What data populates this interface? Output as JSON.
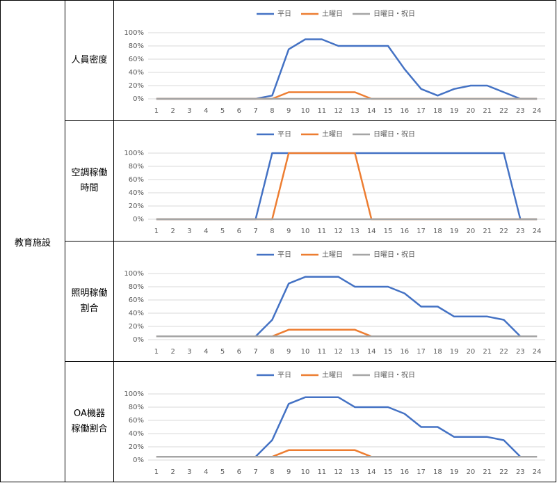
{
  "table": {
    "group": "教育施設",
    "rows": [
      [
        "人員密度"
      ],
      [
        "空調稼働",
        "時間"
      ],
      [
        "照明稼働",
        "割合"
      ],
      [
        "OA機器",
        "稼働割合"
      ]
    ]
  },
  "chart_data": [
    {
      "type": "line",
      "categories": [
        "1",
        "2",
        "3",
        "4",
        "5",
        "6",
        "7",
        "8",
        "9",
        "10",
        "11",
        "12",
        "13",
        "14",
        "15",
        "16",
        "17",
        "18",
        "19",
        "20",
        "21",
        "22",
        "23",
        "24"
      ],
      "ylim": [
        0,
        100
      ],
      "yticks": [
        {
          "value": 0,
          "label": "0%"
        },
        {
          "value": 20,
          "label": "20%"
        },
        {
          "value": 40,
          "label": "40%"
        },
        {
          "value": 60,
          "label": "60%"
        },
        {
          "value": 80,
          "label": "80%"
        },
        {
          "value": 100,
          "label": "100%"
        }
      ],
      "grid": true,
      "series": [
        {
          "name": "平日",
          "color": "#4472c4",
          "values": [
            0,
            0,
            0,
            0,
            0,
            0,
            0,
            5,
            75,
            90,
            90,
            80,
            80,
            80,
            80,
            45,
            15,
            5,
            15,
            20,
            20,
            10,
            0,
            0
          ]
        },
        {
          "name": "土曜日",
          "color": "#ed7d31",
          "values": [
            0,
            0,
            0,
            0,
            0,
            0,
            0,
            0,
            10,
            10,
            10,
            10,
            10,
            0,
            0,
            0,
            0,
            0,
            0,
            0,
            0,
            0,
            0,
            0
          ]
        },
        {
          "name": "日曜日・祝日",
          "color": "#a5a5a5",
          "values": [
            0,
            0,
            0,
            0,
            0,
            0,
            0,
            0,
            0,
            0,
            0,
            0,
            0,
            0,
            0,
            0,
            0,
            0,
            0,
            0,
            0,
            0,
            0,
            0
          ]
        }
      ]
    },
    {
      "type": "line",
      "categories": [
        "1",
        "2",
        "3",
        "4",
        "5",
        "6",
        "7",
        "8",
        "9",
        "10",
        "11",
        "12",
        "13",
        "14",
        "15",
        "16",
        "17",
        "18",
        "19",
        "20",
        "21",
        "22",
        "23",
        "24"
      ],
      "ylim": [
        0,
        100
      ],
      "yticks": [
        {
          "value": 0,
          "label": "0%"
        },
        {
          "value": 20,
          "label": "20%"
        },
        {
          "value": 40,
          "label": "40%"
        },
        {
          "value": 60,
          "label": "60%"
        },
        {
          "value": 80,
          "label": "80%"
        },
        {
          "value": 100,
          "label": "100%"
        }
      ],
      "grid": true,
      "series": [
        {
          "name": "平日",
          "color": "#4472c4",
          "values": [
            0,
            0,
            0,
            0,
            0,
            0,
            0,
            100,
            100,
            100,
            100,
            100,
            100,
            100,
            100,
            100,
            100,
            100,
            100,
            100,
            100,
            100,
            0,
            0
          ]
        },
        {
          "name": "土曜日",
          "color": "#ed7d31",
          "values": [
            0,
            0,
            0,
            0,
            0,
            0,
            0,
            0,
            100,
            100,
            100,
            100,
            100,
            0,
            0,
            0,
            0,
            0,
            0,
            0,
            0,
            0,
            0,
            0
          ]
        },
        {
          "name": "日曜日・祝日",
          "color": "#a5a5a5",
          "values": [
            0,
            0,
            0,
            0,
            0,
            0,
            0,
            0,
            0,
            0,
            0,
            0,
            0,
            0,
            0,
            0,
            0,
            0,
            0,
            0,
            0,
            0,
            0,
            0
          ]
        }
      ]
    },
    {
      "type": "line",
      "categories": [
        "1",
        "2",
        "3",
        "4",
        "5",
        "6",
        "7",
        "8",
        "9",
        "10",
        "11",
        "12",
        "13",
        "14",
        "15",
        "16",
        "17",
        "18",
        "19",
        "20",
        "21",
        "22",
        "23",
        "24"
      ],
      "ylim": [
        0,
        100
      ],
      "yticks": [
        {
          "value": 0,
          "label": "0%"
        },
        {
          "value": 20,
          "label": "20%"
        },
        {
          "value": 40,
          "label": "40%"
        },
        {
          "value": 60,
          "label": "60%"
        },
        {
          "value": 80,
          "label": "80%"
        },
        {
          "value": 100,
          "label": "100%"
        }
      ],
      "grid": true,
      "series": [
        {
          "name": "平日",
          "color": "#4472c4",
          "values": [
            5,
            5,
            5,
            5,
            5,
            5,
            5,
            30,
            85,
            95,
            95,
            95,
            80,
            80,
            80,
            70,
            50,
            50,
            35,
            35,
            35,
            30,
            5,
            5
          ]
        },
        {
          "name": "土曜日",
          "color": "#ed7d31",
          "values": [
            5,
            5,
            5,
            5,
            5,
            5,
            5,
            5,
            15,
            15,
            15,
            15,
            15,
            5,
            5,
            5,
            5,
            5,
            5,
            5,
            5,
            5,
            5,
            5
          ]
        },
        {
          "name": "日曜日・祝日",
          "color": "#a5a5a5",
          "values": [
            5,
            5,
            5,
            5,
            5,
            5,
            5,
            5,
            5,
            5,
            5,
            5,
            5,
            5,
            5,
            5,
            5,
            5,
            5,
            5,
            5,
            5,
            5,
            5
          ]
        }
      ]
    },
    {
      "type": "line",
      "categories": [
        "1",
        "2",
        "3",
        "4",
        "5",
        "6",
        "7",
        "8",
        "9",
        "10",
        "11",
        "12",
        "13",
        "14",
        "15",
        "16",
        "17",
        "18",
        "19",
        "20",
        "21",
        "22",
        "23",
        "24"
      ],
      "ylim": [
        0,
        100
      ],
      "yticks": [
        {
          "value": 0,
          "label": "0%"
        },
        {
          "value": 20,
          "label": "20%"
        },
        {
          "value": 40,
          "label": "40%"
        },
        {
          "value": 60,
          "label": "60%"
        },
        {
          "value": 80,
          "label": "80%"
        },
        {
          "value": 100,
          "label": "100%"
        }
      ],
      "grid": true,
      "series": [
        {
          "name": "平日",
          "color": "#4472c4",
          "values": [
            5,
            5,
            5,
            5,
            5,
            5,
            5,
            30,
            85,
            95,
            95,
            95,
            80,
            80,
            80,
            70,
            50,
            50,
            35,
            35,
            35,
            30,
            5,
            5
          ]
        },
        {
          "name": "土曜日",
          "color": "#ed7d31",
          "values": [
            5,
            5,
            5,
            5,
            5,
            5,
            5,
            5,
            15,
            15,
            15,
            15,
            15,
            5,
            5,
            5,
            5,
            5,
            5,
            5,
            5,
            5,
            5,
            5
          ]
        },
        {
          "name": "日曜日・祝日",
          "color": "#a5a5a5",
          "values": [
            5,
            5,
            5,
            5,
            5,
            5,
            5,
            5,
            5,
            5,
            5,
            5,
            5,
            5,
            5,
            5,
            5,
            5,
            5,
            5,
            5,
            5,
            5,
            5
          ]
        }
      ]
    }
  ]
}
